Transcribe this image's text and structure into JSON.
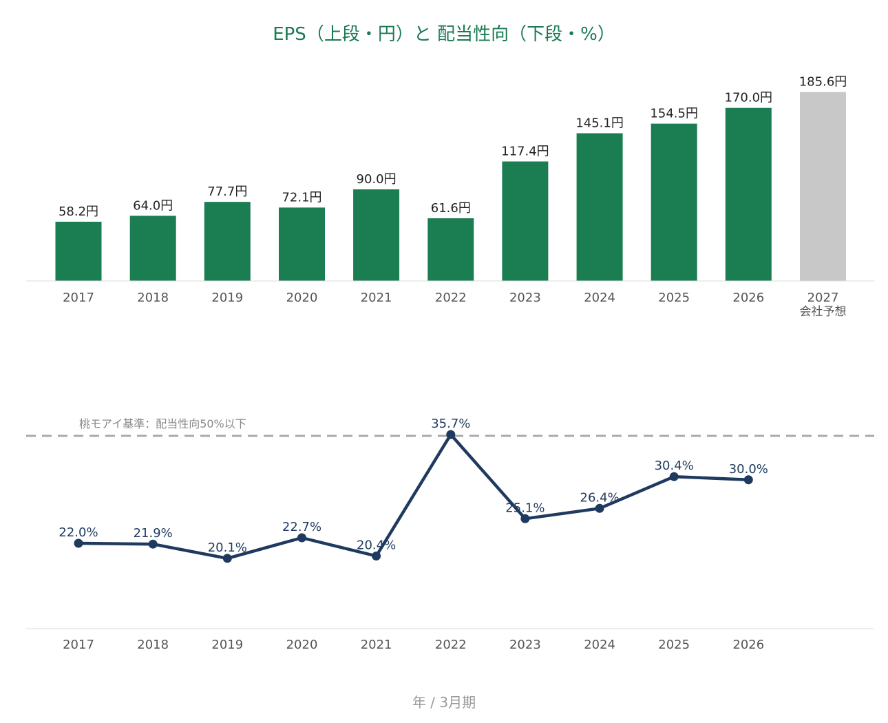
{
  "chart_data": [
    {
      "type": "bar",
      "title": "EPS（上段・円）と 配当性向（下段・%）",
      "categories": [
        "2017",
        "2018",
        "2019",
        "2020",
        "2021",
        "2022",
        "2023",
        "2024",
        "2025",
        "2026",
        "2027"
      ],
      "category_sublabels": [
        "",
        "",
        "",
        "",
        "",
        "",
        "",
        "",
        "",
        "",
        "会社予想"
      ],
      "values": [
        58.2,
        64.0,
        77.7,
        72.1,
        90.0,
        61.6,
        117.4,
        145.1,
        154.5,
        170.0,
        185.6
      ],
      "data_labels": [
        "58.2円",
        "64.0円",
        "77.7円",
        "72.1円",
        "90.0円",
        "61.6円",
        "117.4円",
        "145.1円",
        "154.5円",
        "170.0円",
        "185.6円"
      ],
      "ylim": [
        0,
        200
      ],
      "colors": {
        "actual": "#1b7d52",
        "forecast": "#c8c8c8"
      },
      "forecast_index": 10,
      "grid": false
    },
    {
      "type": "line",
      "categories": [
        "2017",
        "2018",
        "2019",
        "2020",
        "2021",
        "2022",
        "2023",
        "2024",
        "2025",
        "2026"
      ],
      "values": [
        22.0,
        21.9,
        20.1,
        22.7,
        20.4,
        35.7,
        25.1,
        26.4,
        30.4,
        30.0
      ],
      "data_labels": [
        "22.0%",
        "21.9%",
        "20.1%",
        "22.7%",
        "20.4%",
        "35.7%",
        "25.1%",
        "26.4%",
        "30.4%",
        "30.0%"
      ],
      "ylim": [
        0,
        55
      ],
      "color": "#1f3a5f",
      "threshold": {
        "value": 50,
        "label": "桃モアイ基準：配当性向50%以下",
        "color": "#aaaaaa"
      },
      "xlabel": "年 / 3月期",
      "grid": false
    }
  ]
}
